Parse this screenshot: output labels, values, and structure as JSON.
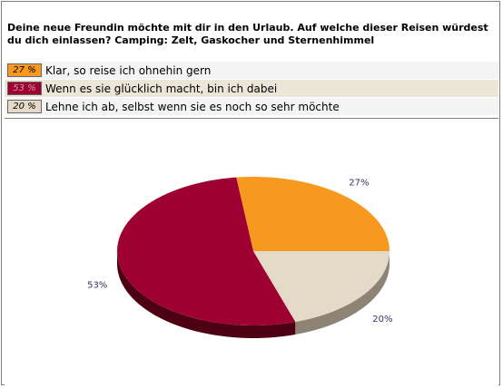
{
  "question": "Deine neue Freundin möchte mit dir in den Urlaub. Auf welche dieser Reisen würdest du dich einlassen? Camping: Zelt, Gaskocher und Sternenhimmel",
  "chart_data": {
    "type": "pie",
    "categories": [
      "Klar, so reise ich ohnehin gern",
      "Wenn es sie glücklich macht, bin ich dabei",
      "Lehne ich ab, selbst wenn sie es noch so sehr möchte"
    ],
    "values": [
      27,
      53,
      20
    ],
    "value_labels": [
      "27 %",
      "53 %",
      "20 %"
    ],
    "slice_labels": [
      "27%",
      "53%",
      "20%"
    ],
    "colors": [
      "#f7991f",
      "#9e0031",
      "#e3dac8"
    ],
    "side_colors": [
      "#9a5a10",
      "#4d0012",
      "#8e8476"
    ]
  }
}
